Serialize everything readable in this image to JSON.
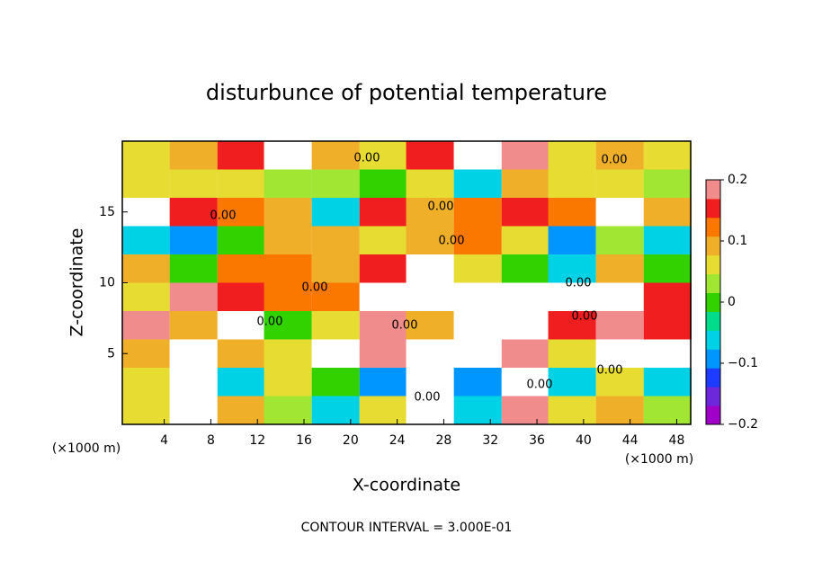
{
  "chart_data": {
    "type": "heatmap",
    "title": "disturbunce of potential temperature",
    "x_label": "X-coordinate",
    "y_label": "Z-coordinate",
    "x_unit": "(×1000 m)",
    "y_unit": "(×1000 m)",
    "footer": "CONTOUR INTERVAL = 3.000E-01",
    "contour_label": "0.00",
    "xlim": [
      0.4,
      49.2
    ],
    "ylim": [
      0,
      20
    ],
    "xticks": [
      4,
      8,
      12,
      16,
      20,
      24,
      28,
      32,
      36,
      40,
      44,
      48
    ],
    "yticks": [
      5,
      10,
      15
    ],
    "x": [
      2.4,
      6.5,
      10.6,
      14.6,
      18.7,
      22.8,
      26.8,
      30.9,
      35.0,
      39.0,
      43.1,
      47.2
    ],
    "y": [
      19,
      17,
      15,
      13,
      11,
      9,
      7,
      5,
      3,
      1
    ],
    "values": [
      [
        0.05,
        0.1,
        0.15,
        0.25,
        0.1,
        0.05,
        0.15,
        0.3,
        0.2,
        0.05,
        0.1,
        0.05
      ],
      [
        0.05,
        0.05,
        0.06,
        0.04,
        0.02,
        0,
        0.05,
        -0.05,
        0.1,
        0.05,
        0.05,
        0.04
      ],
      [
        0.3,
        0.15,
        0.13,
        0.08,
        -0.05,
        0.15,
        0.1,
        0.12,
        0.15,
        0.13,
        0.25,
        0.1
      ],
      [
        -0.05,
        -0.1,
        0,
        0.08,
        0.1,
        0.06,
        0.08,
        0.12,
        0.05,
        -0.1,
        0.02,
        -0.05
      ],
      [
        0.1,
        0,
        0.12,
        0.13,
        0.1,
        0.15,
        0.3,
        0.05,
        0,
        -0.05,
        0.1,
        0
      ],
      [
        0.05,
        0.2,
        0.15,
        0.13,
        0.13,
        0.3,
        0.25,
        0.3,
        0.3,
        0.3,
        0.25,
        0.15
      ],
      [
        0.2,
        0.1,
        0.25,
        0,
        0.05,
        0.2,
        0.1,
        0.3,
        0.3,
        0.15,
        0.2,
        0.15
      ],
      [
        0.1,
        0.3,
        0.1,
        0.05,
        0.3,
        0.2,
        0.3,
        0.3,
        0.2,
        0.05,
        0.3,
        0.3
      ],
      [
        0.05,
        0.3,
        -0.05,
        0.05,
        0,
        -0.1,
        0.3,
        -0.1,
        0.3,
        -0.05,
        0.05,
        -0.05
      ],
      [
        0.05,
        0.3,
        0.1,
        0.02,
        -0.05,
        0.05,
        0.3,
        -0.05,
        0.2,
        0.05,
        0.1,
        0.02
      ]
    ],
    "clim": [
      -0.2,
      0.2
    ],
    "cticks": [
      {
        "value": -0.2,
        "label": "−0.2"
      },
      {
        "value": -0.1,
        "label": "−0.1"
      },
      0,
      0.1,
      0.2
    ],
    "colors": [
      "#a000c8",
      "#6e28dc",
      "#1e3cff",
      "#0096ff",
      "#00d2e6",
      "#00dc8c",
      "#32d200",
      "#a0e632",
      "#e6dc32",
      "#f0af28",
      "#fa7800",
      "#f01e1e",
      "#f08c8c"
    ],
    "over_color": "#ffffff"
  }
}
